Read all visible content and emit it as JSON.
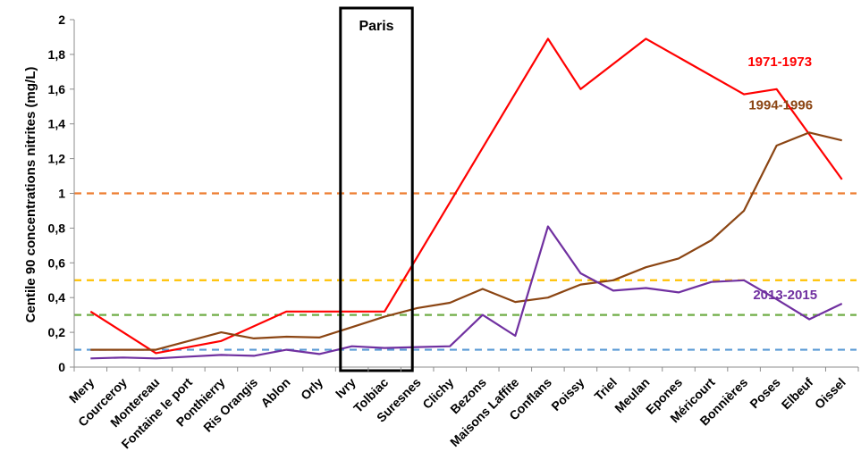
{
  "chart_data": {
    "type": "line",
    "ylabel": "Centile 90 concentrations nitrites (mg/L)",
    "xlabel": "",
    "ylim": [
      0,
      2
    ],
    "yticks": [
      "0",
      "0,2",
      "0,4",
      "0,6",
      "0,8",
      "1",
      "1,2",
      "1,4",
      "1,6",
      "1,8",
      "2"
    ],
    "categories": [
      "Mery",
      "Courceroy",
      "Montereau",
      "Fontaine le port",
      "Ponthierry",
      "Ris Orangis",
      "Ablon",
      "Orly",
      "Ivry",
      "Tolbiac",
      "Suresnes",
      "Clichy",
      "Bezons",
      "Maisons Laffite",
      "Conflans",
      "Poissy",
      "Triel",
      "Meulan",
      "Epones",
      "Méricourt",
      "Bonnières",
      "Poses",
      "Elbeuf",
      "Oissel"
    ],
    "highlight": {
      "label": "Paris",
      "from": "Ivry",
      "to": "Suresnes"
    },
    "reference_lines": [
      {
        "value": 1.0,
        "color": "#ED7D31"
      },
      {
        "value": 0.5,
        "color": "#FFC000"
      },
      {
        "value": 0.3,
        "color": "#70AD47"
      },
      {
        "value": 0.1,
        "color": "#5B9BD5"
      }
    ],
    "series": [
      {
        "name": "1971-1973",
        "color": "#FF0000",
        "values": [
          0.32,
          null,
          0.08,
          null,
          0.15,
          null,
          0.32,
          0.32,
          0.32,
          0.32,
          null,
          null,
          null,
          null,
          1.89,
          1.6,
          null,
          1.89,
          null,
          null,
          1.57,
          1.6,
          null,
          1.08
        ]
      },
      {
        "name": "1994-1996",
        "color": "#8B4513",
        "values": [
          0.1,
          0.1,
          0.1,
          0.15,
          0.2,
          0.165,
          0.175,
          0.17,
          0.23,
          0.29,
          0.34,
          0.37,
          0.45,
          0.375,
          0.4,
          0.475,
          0.5,
          0.575,
          0.625,
          0.73,
          0.9,
          1.275,
          1.35,
          1.305
        ]
      },
      {
        "name": "2013-2015",
        "color": "#7030A0",
        "values": [
          0.05,
          0.055,
          0.05,
          0.06,
          0.07,
          0.065,
          0.1,
          0.075,
          0.12,
          0.11,
          0.115,
          0.12,
          0.3,
          0.18,
          0.81,
          0.54,
          0.44,
          0.455,
          0.43,
          0.49,
          0.5,
          0.39,
          0.275,
          0.365
        ]
      }
    ]
  }
}
